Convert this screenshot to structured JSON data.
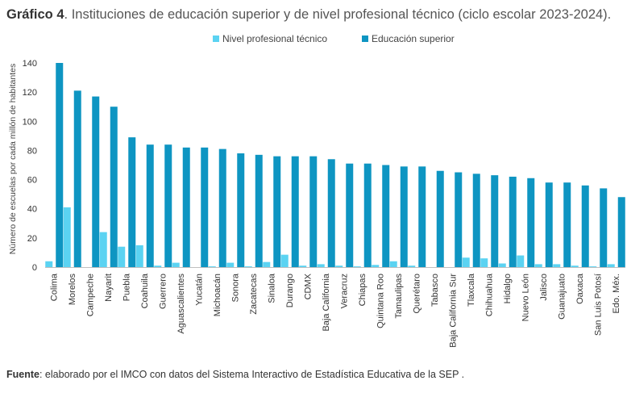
{
  "header": {
    "title_lead": "Gráfico 4",
    "title_rest": ". Instituciones de educación superior y de nivel profesional técnico (ciclo escolar 2023-2024)."
  },
  "footer": {
    "source_lead": "Fuente",
    "source_rest": ": elaborado por el IMCO con datos del Sistema Interactivo de Estadística Educativa de la SEP ."
  },
  "colors": {
    "tecnico": "#5bd3f2",
    "superior": "#0e95c2",
    "axis": "#bfbfbf"
  },
  "chart_data": {
    "type": "bar",
    "title": "",
    "xlabel": "",
    "ylabel": "Número de escuelas por cada millón de habitantes",
    "ylim": [
      0,
      140
    ],
    "yticks": [
      0,
      20,
      40,
      60,
      80,
      100,
      120,
      140
    ],
    "grid": false,
    "legend_position": "top-center",
    "categories": [
      "Colima",
      "Morelos",
      "Campeche",
      "Nayarit",
      "Puebla",
      "Coahuila",
      "Guerrero",
      "Aguascalientes",
      "Yucatán",
      "Michoacán",
      "Sonora",
      "Zacatecas",
      "Sinaloa",
      "Durango",
      "CDMX",
      "Baja California",
      "Veracruz",
      "Chiapas",
      "Quintana Roo",
      "Tamaulipas",
      "Querétaro",
      "Tabasco",
      "Baja California Sur",
      "Tlaxcala",
      "Chihuahua",
      "Hidalgo",
      "Nuevo León",
      "Jalisco",
      "Guanajuato",
      "Oaxaca",
      "San Luis Potosí",
      "Edo. Méx."
    ],
    "series": [
      {
        "name": "Nivel profesional técnico",
        "color": "#5bd3f2",
        "values": [
          4,
          41,
          0,
          24,
          14,
          15,
          1,
          3,
          0,
          0.5,
          3,
          0.5,
          3.5,
          8.5,
          1,
          2,
          1,
          0.5,
          1.5,
          4,
          1,
          0,
          0,
          6.5,
          6,
          2.5,
          8,
          2,
          2,
          1,
          0.5,
          2
        ]
      },
      {
        "name": "Educación superior",
        "color": "#0e95c2",
        "values": [
          140,
          121,
          117,
          110,
          89,
          84,
          84,
          82,
          82,
          81,
          78,
          77,
          76,
          76,
          76,
          74,
          71,
          71,
          70,
          69,
          69,
          66,
          65,
          64,
          63,
          62,
          61,
          58,
          58,
          56,
          54,
          48
        ]
      }
    ]
  }
}
